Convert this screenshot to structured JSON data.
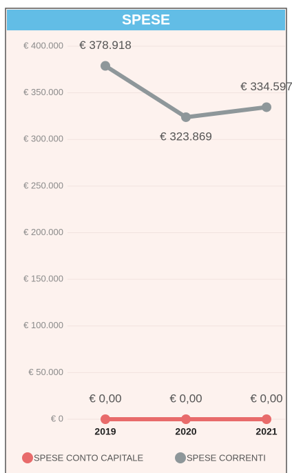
{
  "chart_data": {
    "type": "line",
    "title": "SPESE",
    "categories": [
      "2019",
      "2020",
      "2021"
    ],
    "series": [
      {
        "name": "SPESE CONTO CAPITALE",
        "color": "#e86b6b",
        "values": [
          0,
          0,
          0
        ],
        "value_labels": [
          "€ 0,00",
          "€ 0,00",
          "€ 0,00"
        ]
      },
      {
        "name": "SPESE CORRENTI",
        "color": "#8e979a",
        "values": [
          378918,
          323869,
          334597
        ],
        "value_labels": [
          "€ 378.918",
          "€ 323.869",
          "€ 334.597"
        ]
      }
    ],
    "ylim": [
      0,
      400000
    ],
    "yticks": [
      {
        "value": 0,
        "label": "€ 0"
      },
      {
        "value": 50000,
        "label": "€ 50.000"
      },
      {
        "value": 100000,
        "label": "€ 100.000"
      },
      {
        "value": 150000,
        "label": "€ 150.000"
      },
      {
        "value": 200000,
        "label": "€ 200.000"
      },
      {
        "value": 250000,
        "label": "€ 250.000"
      },
      {
        "value": 300000,
        "label": "€ 300.000"
      },
      {
        "value": 350000,
        "label": "€ 350.000"
      },
      {
        "value": 400000,
        "label": "€ 400.000"
      }
    ],
    "grid": true,
    "legend": "bottom"
  }
}
